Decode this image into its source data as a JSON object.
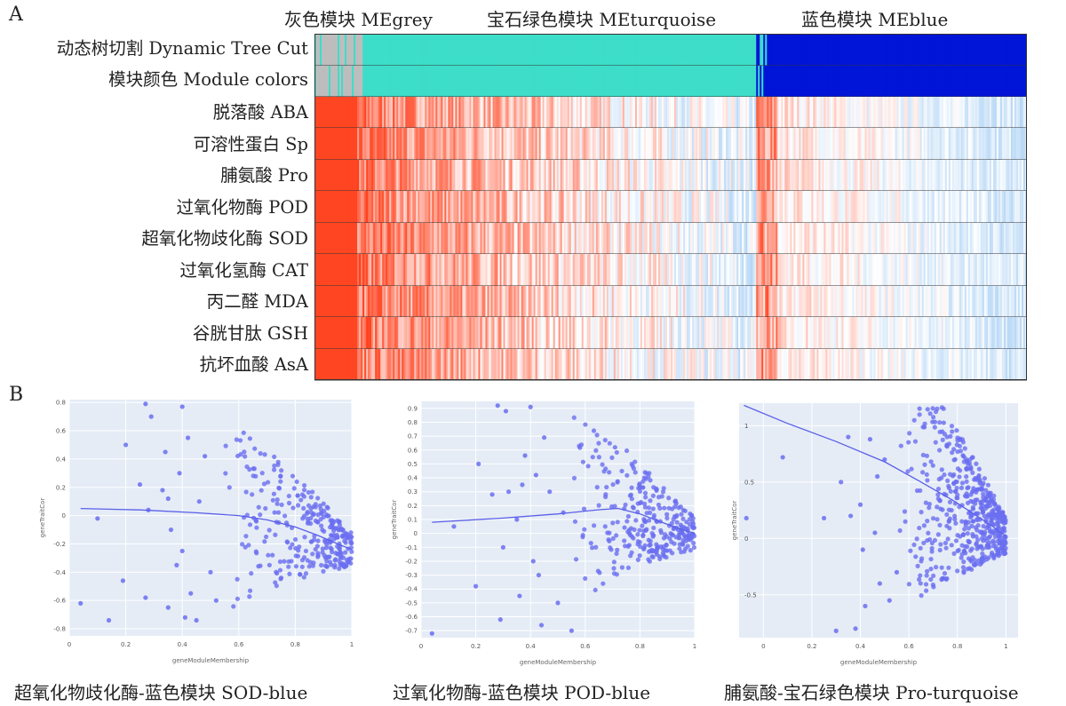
{
  "panelA": {
    "letter": "A",
    "modules": [
      {
        "title": "灰色模块 MEgrey",
        "color": "#bdbdbd",
        "from": 0.0,
        "to": 0.0675
      },
      {
        "title": "宝石绿色模块 MEturquoise",
        "color": "#3dddc9",
        "from": 0.0675,
        "to": 0.62
      },
      {
        "title": "蓝色模块 MEblue",
        "color": "#0015d8",
        "from": 0.62,
        "to": 1.0
      }
    ],
    "rows": [
      {
        "label": "动态树切割 Dynamic Tree Cut"
      },
      {
        "label": "模块颜色 Module colors"
      },
      {
        "label": "脱落酸 ABA"
      },
      {
        "label": "可溶性蛋白 Sp"
      },
      {
        "label": "脯氨酸 Pro"
      },
      {
        "label": "过氧化物酶 POD"
      },
      {
        "label": "超氧化物歧化酶 SOD"
      },
      {
        "label": "过氧化氢酶 CAT"
      },
      {
        "label": "丙二醛 MDA"
      },
      {
        "label": "谷胱甘肽 GSH"
      },
      {
        "label": "抗坏血酸 AsA"
      }
    ],
    "colors": {
      "positive": "#ff3b16",
      "neutral": "#ffffff",
      "negative": "#7fb8ee"
    }
  },
  "panelB": {
    "letter": "B",
    "captions": [
      "超氧化物歧化酶-蓝色模块 SOD-blue",
      "过氧化物酶-蓝色模块 POD-blue",
      "脯氨酸-宝石绿色模块 Pro-turquoise"
    ]
  },
  "chart_data": [
    {
      "type": "scatter",
      "title": "超氧化物歧化酶-蓝色模块 SOD-blue",
      "xlabel": "geneModuleMembership",
      "ylabel": "geneTraitCor",
      "xlim": [
        0,
        1
      ],
      "ylim": [
        -0.85,
        0.82
      ],
      "xticks": [
        0,
        0.2,
        0.4,
        0.6,
        0.8,
        1
      ],
      "yticks": [
        -0.8,
        -0.6,
        -0.4,
        -0.2,
        0,
        0.2,
        0.4,
        0.6,
        0.8
      ],
      "point_color": "#6a6ef0",
      "trend": {
        "x": [
          0.04,
          0.25,
          0.45,
          0.6,
          0.7,
          0.8,
          0.88,
          0.95,
          1.0
        ],
        "y": [
          0.05,
          0.04,
          0.02,
          0.0,
          -0.03,
          -0.08,
          -0.14,
          -0.2,
          -0.24
        ]
      },
      "points": {
        "x": [
          0.04,
          0.1,
          0.14,
          0.19,
          0.2,
          0.25,
          0.27,
          0.28,
          0.29,
          0.33,
          0.34,
          0.35,
          0.36,
          0.38,
          0.39,
          0.4,
          0.41,
          0.42,
          0.43,
          0.45,
          0.46,
          0.48,
          0.5,
          0.52,
          0.27,
          0.35,
          0.4
        ],
        "y": [
          -0.62,
          -0.02,
          -0.74,
          -0.46,
          0.5,
          0.22,
          0.79,
          0.04,
          0.7,
          0.18,
          0.45,
          -0.65,
          -0.1,
          -0.35,
          0.3,
          0.77,
          -0.72,
          0.55,
          -0.55,
          -0.74,
          0.1,
          0.42,
          -0.4,
          -0.6,
          -0.58,
          0.12,
          -0.25
        ]
      }
    },
    {
      "type": "scatter",
      "title": "过氧化物酶-蓝色模块 POD-blue",
      "xlabel": "geneModuleMembership",
      "ylabel": "geneTraitCor",
      "xlim": [
        0,
        1
      ],
      "ylim": [
        -0.75,
        0.95
      ],
      "xticks": [
        0,
        0.2,
        0.4,
        0.6,
        0.8,
        1
      ],
      "yticks": [
        -0.7,
        -0.6,
        -0.5,
        -0.4,
        -0.3,
        -0.2,
        -0.1,
        0,
        0.1,
        0.2,
        0.3,
        0.4,
        0.5,
        0.6,
        0.7,
        0.8,
        0.9
      ],
      "point_color": "#6a6ef0",
      "trend": {
        "x": [
          0.04,
          0.3,
          0.5,
          0.65,
          0.72,
          0.8,
          0.88,
          0.95,
          1.0
        ],
        "y": [
          0.08,
          0.11,
          0.14,
          0.17,
          0.18,
          0.14,
          0.08,
          0.03,
          0.0
        ]
      },
      "points": {
        "x": [
          0.04,
          0.12,
          0.2,
          0.21,
          0.26,
          0.28,
          0.29,
          0.31,
          0.32,
          0.35,
          0.36,
          0.38,
          0.4,
          0.41,
          0.42,
          0.44,
          0.45,
          0.47,
          0.5,
          0.52,
          0.55,
          0.3,
          0.37,
          0.43
        ],
        "y": [
          -0.72,
          0.05,
          -0.38,
          0.5,
          0.28,
          0.92,
          -0.62,
          0.88,
          0.3,
          0.1,
          -0.45,
          0.56,
          0.91,
          -0.2,
          0.42,
          -0.66,
          0.69,
          0.3,
          -0.5,
          0.15,
          -0.7,
          -0.1,
          0.35,
          -0.3
        ]
      }
    },
    {
      "type": "scatter",
      "title": "脯氨酸-宝石绿色模块 Pro-turquoise",
      "xlabel": "geneModuleMembership",
      "ylabel": "geneTraitCor",
      "xlim": [
        -0.1,
        1.05
      ],
      "ylim": [
        -0.88,
        1.2
      ],
      "xticks": [
        0,
        0.2,
        0.4,
        0.6,
        0.8,
        1
      ],
      "yticks": [
        -0.5,
        0,
        0.5,
        1
      ],
      "point_color": "#6a6ef0",
      "trend": {
        "x": [
          -0.08,
          0.1,
          0.3,
          0.5,
          0.65,
          0.78,
          0.88,
          0.95,
          1.0
        ],
        "y": [
          1.18,
          1.02,
          0.86,
          0.68,
          0.5,
          0.34,
          0.2,
          0.1,
          0.02
        ]
      },
      "points": {
        "x": [
          -0.07,
          0.08,
          0.25,
          0.3,
          0.32,
          0.35,
          0.38,
          0.4,
          0.42,
          0.44,
          0.46,
          0.48,
          0.5,
          0.52,
          0.55,
          0.36,
          0.41,
          0.47
        ],
        "y": [
          0.18,
          0.72,
          0.18,
          -0.82,
          0.5,
          0.9,
          -0.8,
          0.3,
          -0.6,
          0.88,
          0.05,
          -0.4,
          0.7,
          -0.55,
          -0.3,
          0.2,
          -0.1,
          0.55
        ]
      }
    }
  ]
}
